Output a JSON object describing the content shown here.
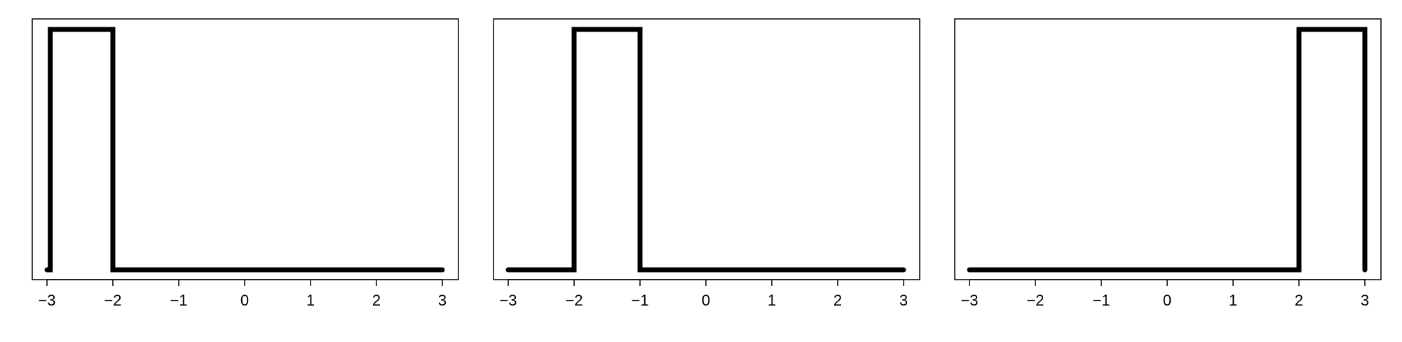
{
  "chart_data": [
    {
      "type": "line",
      "title": "",
      "xlabel": "",
      "ylabel": "",
      "xlim": [
        -3,
        3
      ],
      "ylim": [
        0,
        1
      ],
      "xticks": [
        -3,
        -2,
        -1,
        0,
        1,
        2,
        3
      ],
      "xtick_labels": [
        "−3",
        "−2",
        "−1",
        "0",
        "1",
        "2",
        "3"
      ],
      "show_y_axis": false,
      "grid": false,
      "series": [
        {
          "x": [
            -3.0,
            -2.95,
            -2.95,
            -2.0,
            -2.0,
            3.0
          ],
          "y": [
            0,
            0,
            1,
            1,
            0,
            0
          ]
        }
      ]
    },
    {
      "type": "line",
      "title": "",
      "xlabel": "",
      "ylabel": "",
      "xlim": [
        -3,
        3
      ],
      "ylim": [
        0,
        1
      ],
      "xticks": [
        -3,
        -2,
        -1,
        0,
        1,
        2,
        3
      ],
      "xtick_labels": [
        "−3",
        "−2",
        "−1",
        "0",
        "1",
        "2",
        "3"
      ],
      "show_y_axis": false,
      "grid": false,
      "series": [
        {
          "x": [
            -3.0,
            -2.0,
            -2.0,
            -1.0,
            -1.0,
            3.0
          ],
          "y": [
            0,
            0,
            1,
            1,
            0,
            0
          ]
        }
      ]
    },
    {
      "type": "line",
      "title": "",
      "xlabel": "",
      "ylabel": "",
      "xlim": [
        -3,
        3
      ],
      "ylim": [
        0,
        1
      ],
      "xticks": [
        -3,
        -2,
        -1,
        0,
        1,
        2,
        3
      ],
      "xtick_labels": [
        "−3",
        "−2",
        "−1",
        "0",
        "1",
        "2",
        "3"
      ],
      "show_y_axis": false,
      "grid": false,
      "series": [
        {
          "x": [
            -3.0,
            2.0,
            2.0,
            3.0,
            3.0
          ],
          "y": [
            0,
            0,
            1,
            1,
            0
          ]
        }
      ]
    }
  ]
}
